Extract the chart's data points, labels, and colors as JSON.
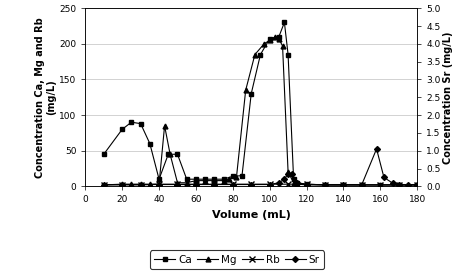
{
  "title": "",
  "xlabel": "Volume (mL)",
  "ylabel_left": "Concentration Ca, Mg and Rb\n(mg/L)",
  "ylabel_right": "Concentration Sr (mg/L)",
  "xlim": [
    0,
    180
  ],
  "ylim_left": [
    0,
    250
  ],
  "ylim_right": [
    0,
    5
  ],
  "xticks": [
    0,
    20,
    40,
    60,
    80,
    100,
    120,
    140,
    160,
    180
  ],
  "yticks_left": [
    0,
    50,
    100,
    150,
    200,
    250
  ],
  "yticks_right": [
    0,
    0.5,
    1,
    1.5,
    2,
    2.5,
    3,
    3.5,
    4,
    4.5,
    5
  ],
  "Ca_x": [
    10,
    20,
    25,
    30,
    35,
    40,
    45,
    50,
    55,
    60,
    65,
    70,
    75,
    80,
    85,
    90,
    95,
    100,
    105,
    108,
    110,
    113,
    115,
    120,
    130,
    140,
    150,
    160,
    170,
    180
  ],
  "Ca_y": [
    45,
    80,
    90,
    88,
    60,
    10,
    45,
    45,
    10,
    10,
    10,
    10,
    10,
    14,
    15,
    130,
    185,
    207,
    210,
    230,
    185,
    10,
    5,
    3,
    2,
    2,
    2,
    2,
    2,
    2
  ],
  "Mg_x": [
    10,
    20,
    25,
    30,
    35,
    40,
    43,
    46,
    50,
    55,
    60,
    65,
    70,
    75,
    78,
    82,
    87,
    92,
    97,
    100,
    103,
    105,
    107,
    110,
    113,
    115,
    120,
    130,
    140,
    150,
    160,
    170,
    180
  ],
  "Mg_y": [
    2,
    3,
    3,
    3,
    3,
    3,
    85,
    45,
    5,
    5,
    8,
    8,
    8,
    8,
    10,
    13,
    135,
    185,
    200,
    205,
    210,
    207,
    197,
    20,
    5,
    3,
    2,
    2,
    2,
    2,
    2,
    2,
    2
  ],
  "Rb_x": [
    10,
    20,
    30,
    40,
    50,
    60,
    70,
    80,
    90,
    100,
    110,
    120,
    130,
    140,
    150,
    160,
    170,
    180
  ],
  "Rb_y": [
    2,
    2,
    2,
    3,
    3,
    3,
    3,
    3,
    3,
    3,
    3,
    3,
    2,
    2,
    2,
    2,
    2,
    2
  ],
  "Sr_x": [
    10,
    20,
    30,
    40,
    50,
    60,
    70,
    80,
    90,
    100,
    105,
    108,
    110,
    112,
    115,
    120,
    130,
    140,
    150,
    158,
    162,
    167,
    170,
    175,
    180
  ],
  "Sr_y": [
    0.05,
    0.05,
    0.05,
    0.05,
    0.05,
    0.05,
    0.05,
    0.05,
    0.05,
    0.05,
    0.1,
    0.2,
    0.35,
    0.35,
    0.1,
    0.05,
    0.05,
    0.05,
    0.05,
    1.05,
    0.25,
    0.08,
    0.05,
    0.05,
    0.05
  ],
  "background_color": "#ffffff"
}
